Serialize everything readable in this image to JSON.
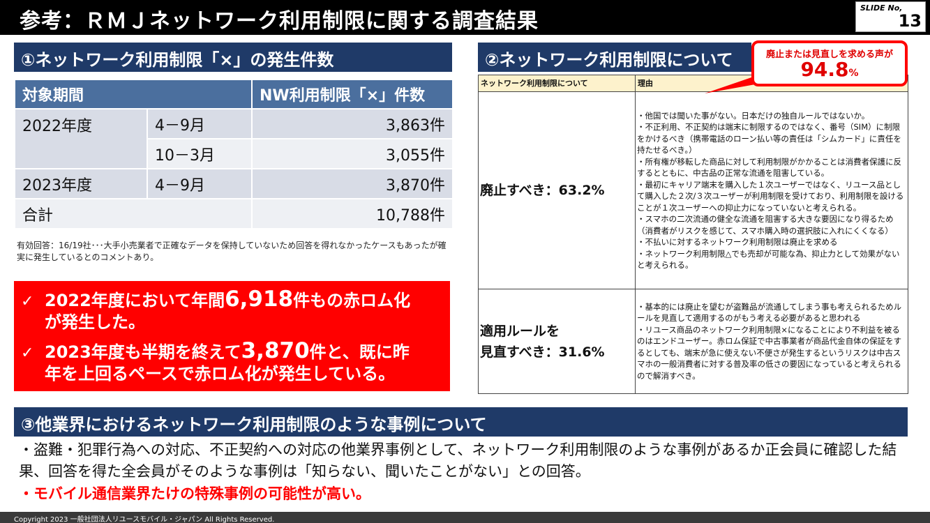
{
  "title": "参考：ＲＭＪネットワーク利用制限に関する調査結果",
  "slide": {
    "label": "SLIDE No,",
    "number": "13"
  },
  "section1": {
    "header": "①ネットワーク利用制限「×」の発生件数",
    "table": {
      "col_period": "対象期間",
      "col_count": "NW利用制限「×」件数",
      "rows": [
        {
          "year": "2022年度",
          "range": "4－9月",
          "count": "3,863件"
        },
        {
          "range": "10－3月",
          "count": "3,055件"
        },
        {
          "year": "2023年度",
          "range": "4－9月",
          "count": "3,870件"
        },
        {
          "year": "合計",
          "count": "10,788件"
        }
      ]
    },
    "note": "有効回答：16/19社･･･大手小売業者で正確なデータを保持していないため回答を得れなかったケースもあったが確実に発生しているとのコメントあり。",
    "highlight": {
      "check": "✓",
      "l1_pre": "2022年度において年間",
      "l1_big": "6,918",
      "l1_post": "件もの赤ロム化",
      "l2": "が発生した。",
      "l3_pre": "2023年度も半期を終えて",
      "l3_big": "3,870",
      "l3_post": "件と、既に昨",
      "l4": "年を上回るペースで赤ロム化が発生している。"
    }
  },
  "section2": {
    "header": "②ネットワーク利用制限について",
    "callout_l1": "廃止または見直しを求める声が",
    "callout_value": "94.8",
    "callout_unit": "%",
    "col1": "ネットワーク利用制限について",
    "col2": "理由",
    "row1_label": "廃止すべき：63.2%",
    "row1_reasons": [
      "・他国では聞いた事がない。日本だけの独自ルールではないか。",
      "・不正利用、不正契約は端末に制限するのではなく、番号（SIM）に制限をかけるべき（携帯電話のローン払い等の責任は「シムカード」に責任を持たせるべき。）",
      "・所有権が移転した商品に対して利用制限がかかることは消費者保護に反するとともに、中古品の正常な流通を阻害している。",
      "・最初にキャリア端末を購入した１次ユーザーではなく、リユース品として購入した２次/３次ユーザーが利用制限を受けており、利用制限を設けることが１次ユーザーへの抑止力になっていないと考えられる。",
      "・スマホの二次流通の健全な流通を阻害する大きな要因になり得るため（消費者がリスクを感じて、スマホ購入時の選択肢に入れにくくなる）",
      "・不払いに対するネットワーク利用制限は廃止を求める",
      "・ネットワーク利用制限△でも売却が可能な為、抑止力として効果がないと考えられる。"
    ],
    "row2_label_l1": "適用ルールを",
    "row2_label_l2": "見直すべき：31.6%",
    "row2_reasons": [
      "・基本的には廃止を望むが盗難品が流通してしまう事も考えられるためルールを見直して適用するのがもう考える必要があると思われる",
      "・リユース商品のネットワーク利用制限×になることにより不利益を被るのはエンドユーザー。赤ロム保証で中古事業者が商品代金自体の保証をするとしても、端末が急に使えない不便さが発生するというリスクは中古スマホの一般消費者に対する普及率の低さの要因になっていると考えられるので解消すべき。"
    ]
  },
  "section3": {
    "header": "③他業界におけるネットワーク利用制限のような事例について",
    "body": "・盗難・犯罪行為への対応、不正契約への対応の他業界事例として、ネットワーク利用制限のような事例があるか正会員に確認した結果、回答を得た全会員がそのような事例は「知らない、聞いたことがない」との回答。",
    "emphasis": "・モバイル通信業界たけの特殊事例の可能性が高い。"
  },
  "footer": "Copyright 2023 一般社団法人リユースモバイル・ジャパン All Rights Reserved.",
  "colors": {
    "navy": "#1f3a68",
    "table_header": "#4b6f9e",
    "red": "#ff0000",
    "header_cell": "#fdf2cc"
  }
}
